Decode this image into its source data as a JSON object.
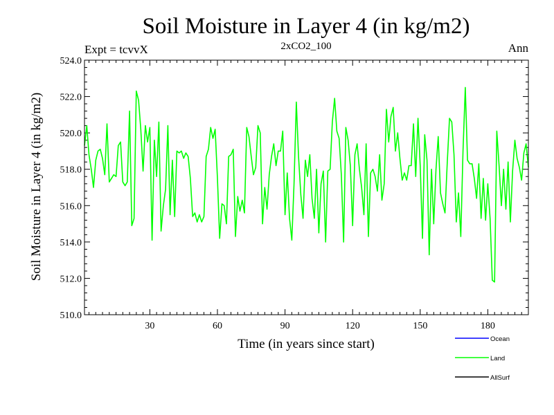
{
  "header": {
    "title": "Soil Moisture in Layer 4 (in kg/m2)",
    "experiment": "Expt = tcvvX",
    "run": "2xCO2_100",
    "period": "Ann"
  },
  "chart_data": {
    "type": "line",
    "title": "Soil Moisture in Layer 4 (in kg/m2)",
    "xlabel": "Time (in years since start)",
    "ylabel": "Soil Moisture in Layer 4 (in kg/m2)",
    "xlim": [
      1,
      198
    ],
    "ylim": [
      510.0,
      524.0
    ],
    "x_ticks": [
      30,
      60,
      90,
      120,
      150,
      180
    ],
    "y_ticks": [
      "510.0",
      "512.0",
      "514.0",
      "516.0",
      "518.0",
      "520.0",
      "522.0",
      "524.0"
    ],
    "grid": false,
    "legend_position": "bottom-right",
    "legend": [
      {
        "name": "Ocean",
        "color": "#0000ff"
      },
      {
        "name": "Land",
        "color": "#00ff00"
      },
      {
        "name": "AllSurf",
        "color": "#000000"
      }
    ],
    "series": [
      {
        "name": "Land",
        "color": "#00ff00",
        "x": [
          1,
          2,
          3,
          4,
          5,
          6,
          7,
          8,
          9,
          10,
          11,
          12,
          13,
          14,
          15,
          16,
          17,
          18,
          19,
          20,
          21,
          22,
          23,
          24,
          25,
          26,
          27,
          28,
          29,
          30,
          31,
          32,
          33,
          34,
          35,
          36,
          37,
          38,
          39,
          40,
          41,
          42,
          43,
          44,
          45,
          46,
          47,
          48,
          49,
          50,
          51,
          52,
          53,
          54,
          55,
          56,
          57,
          58,
          59,
          60,
          61,
          62,
          63,
          64,
          65,
          66,
          67,
          68,
          69,
          70,
          71,
          72,
          73,
          74,
          75,
          76,
          77,
          78,
          79,
          80,
          81,
          82,
          83,
          84,
          85,
          86,
          87,
          88,
          89,
          90,
          91,
          92,
          93,
          94,
          95,
          96,
          97,
          98,
          99,
          100,
          101,
          102,
          103,
          104,
          105,
          106,
          107,
          108,
          109,
          110,
          111,
          112,
          113,
          114,
          115,
          116,
          117,
          118,
          119,
          120,
          121,
          122,
          123,
          124,
          125,
          126,
          127,
          128,
          129,
          130,
          131,
          132,
          133,
          134,
          135,
          136,
          137,
          138,
          139,
          140,
          141,
          142,
          143,
          144,
          145,
          146,
          147,
          148,
          149,
          150,
          151,
          152,
          153,
          154,
          155,
          156,
          157,
          158,
          159,
          160,
          161,
          162,
          163,
          164,
          165,
          166,
          167,
          168,
          169,
          170,
          171,
          172,
          173,
          174,
          175,
          176,
          177,
          178,
          179,
          180,
          181,
          182,
          183,
          184,
          185,
          186,
          187,
          188,
          189,
          190,
          191,
          192,
          193,
          194,
          195,
          196,
          197,
          198
        ],
        "values": [
          519.3,
          520.4,
          518.8,
          518.0,
          517.0,
          518.5,
          519.0,
          519.1,
          518.6,
          517.7,
          520.5,
          517.3,
          517.5,
          517.7,
          517.6,
          519.3,
          519.5,
          517.3,
          517.1,
          517.3,
          521.2,
          514.9,
          515.3,
          522.3,
          521.8,
          520.2,
          517.9,
          520.4,
          519.5,
          520.3,
          514.1,
          519.6,
          517.6,
          520.6,
          514.6,
          516.0,
          516.9,
          520.4,
          515.5,
          518.5,
          515.4,
          519.0,
          518.9,
          519.0,
          518.6,
          518.9,
          518.7,
          517.5,
          515.4,
          515.6,
          515.1,
          515.5,
          515.1,
          515.4,
          518.7,
          519.1,
          520.3,
          519.7,
          520.2,
          517.5,
          514.2,
          516.1,
          516.0,
          515.0,
          518.7,
          518.8,
          519.1,
          514.3,
          516.5,
          515.7,
          516.3,
          515.6,
          520.3,
          519.8,
          518.7,
          517.7,
          518.1,
          520.4,
          520.0,
          515.0,
          517.0,
          515.8,
          517.7,
          518.7,
          519.4,
          518.2,
          519.0,
          519.0,
          520.1,
          515.5,
          517.8,
          515.3,
          514.1,
          517.2,
          521.7,
          518.7,
          516.6,
          515.3,
          518.5,
          517.6,
          518.8,
          516.4,
          515.3,
          518.0,
          514.5,
          517.2,
          517.9,
          514.0,
          517.9,
          518.0,
          520.6,
          521.9,
          520.1,
          519.7,
          517.7,
          514.0,
          520.3,
          519.6,
          518.2,
          514.9,
          518.8,
          519.4,
          518.0,
          517.0,
          515.5,
          519.4,
          514.3,
          517.8,
          518.0,
          517.6,
          516.8,
          518.8,
          516.3,
          517.2,
          521.3,
          519.5,
          520.9,
          521.4,
          519.0,
          520.0,
          518.6,
          517.4,
          517.8,
          517.4,
          518.2,
          518.2,
          520.5,
          517.6,
          520.8,
          518.2,
          514.2,
          519.9,
          518.5,
          513.3,
          518.0,
          515.0,
          518.0,
          519.8,
          516.7,
          516.1,
          515.6,
          518.4,
          520.8,
          520.6,
          518.8,
          515.1,
          516.7,
          514.3,
          519.0,
          522.5,
          518.5,
          518.3,
          518.3,
          517.5,
          516.4,
          518.3,
          515.3,
          517.5,
          515.2,
          517.2,
          515.3,
          511.9,
          511.8,
          520.1,
          518.2,
          516.0,
          518.0,
          515.8,
          518.4,
          515.1,
          517.9,
          519.6,
          518.6,
          518.1,
          517.4,
          518.9,
          519.4,
          518.1
        ]
      }
    ]
  }
}
